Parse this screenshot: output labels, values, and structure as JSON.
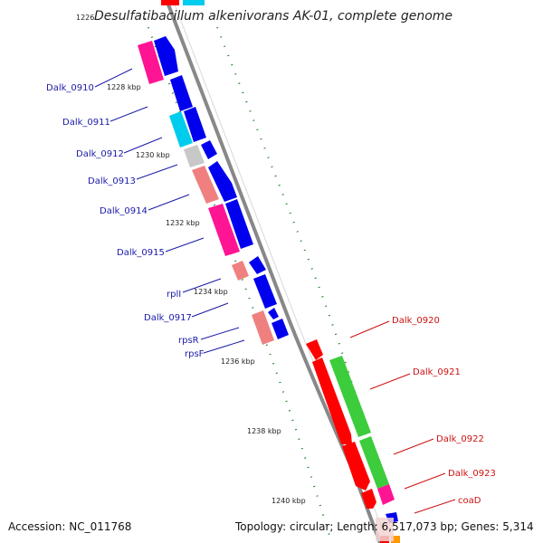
{
  "title": "Desulfatibacillum alkenivorans AK-01, complete genome",
  "footer": {
    "accession": "Accession: NC_011768",
    "topology": "Topology: circular; Length: 6,517,073 bp; Genes: 5,314"
  },
  "top_tick_label": "1226",
  "tick_labels": [
    "1228 kbp",
    "1230 kbp",
    "1232 kbp",
    "1234 kbp",
    "1236 kbp",
    "1238 kbp",
    "1240 kbp"
  ],
  "gene_labels_left": [
    "Dalk_0910",
    "Dalk_0911",
    "Dalk_0912",
    "Dalk_0913",
    "Dalk_0914",
    "Dalk_0915",
    "rplI",
    "Dalk_0917",
    "rpsR",
    "rpsF"
  ],
  "gene_labels_right": [
    "Dalk_0920",
    "Dalk_0921",
    "Dalk_0922",
    "Dalk_0923",
    "coaD"
  ],
  "colors": {
    "blue": "#0000ee",
    "magenta": "#ff1493",
    "cyan": "#00ccee",
    "gray": "#c8c8c8",
    "salmon": "#f08080",
    "red": "#ff0000",
    "green": "#3ccc3c",
    "orange": "#ff9900",
    "backbone": "#888888",
    "gc_skew": "#117711",
    "label_blue": "#1a1aa8",
    "label_red": "#cc1111"
  },
  "strands": {
    "forward_icon": "arrow-right-icon",
    "reverse_icon": "arrow-left-icon"
  }
}
